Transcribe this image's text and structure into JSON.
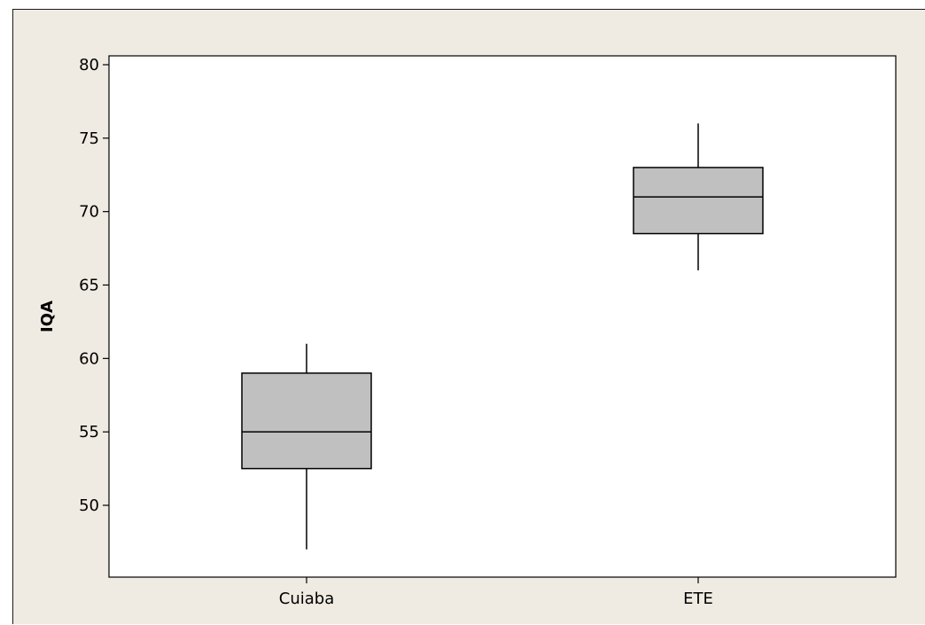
{
  "chart_data": {
    "type": "box",
    "categories": [
      "Cuiaba",
      "ETE"
    ],
    "boxes": [
      {
        "category": "Cuiaba",
        "whisker_low": 47,
        "q1": 52.5,
        "median": 55,
        "q3": 59,
        "whisker_high": 61
      },
      {
        "category": "ETE",
        "whisker_low": 66,
        "q1": 68.5,
        "median": 71,
        "q3": 73,
        "whisker_high": 76
      }
    ],
    "xlabel": "",
    "ylabel": "IQA",
    "ylim": [
      45,
      80
    ],
    "yticks": [
      50,
      55,
      60,
      65,
      70,
      75,
      80
    ],
    "grid": false,
    "colors": {
      "box_fill": "#c0c0c0",
      "plot_background": "#ffffff",
      "figure_background": "#efebe2",
      "line": "#000000"
    }
  }
}
